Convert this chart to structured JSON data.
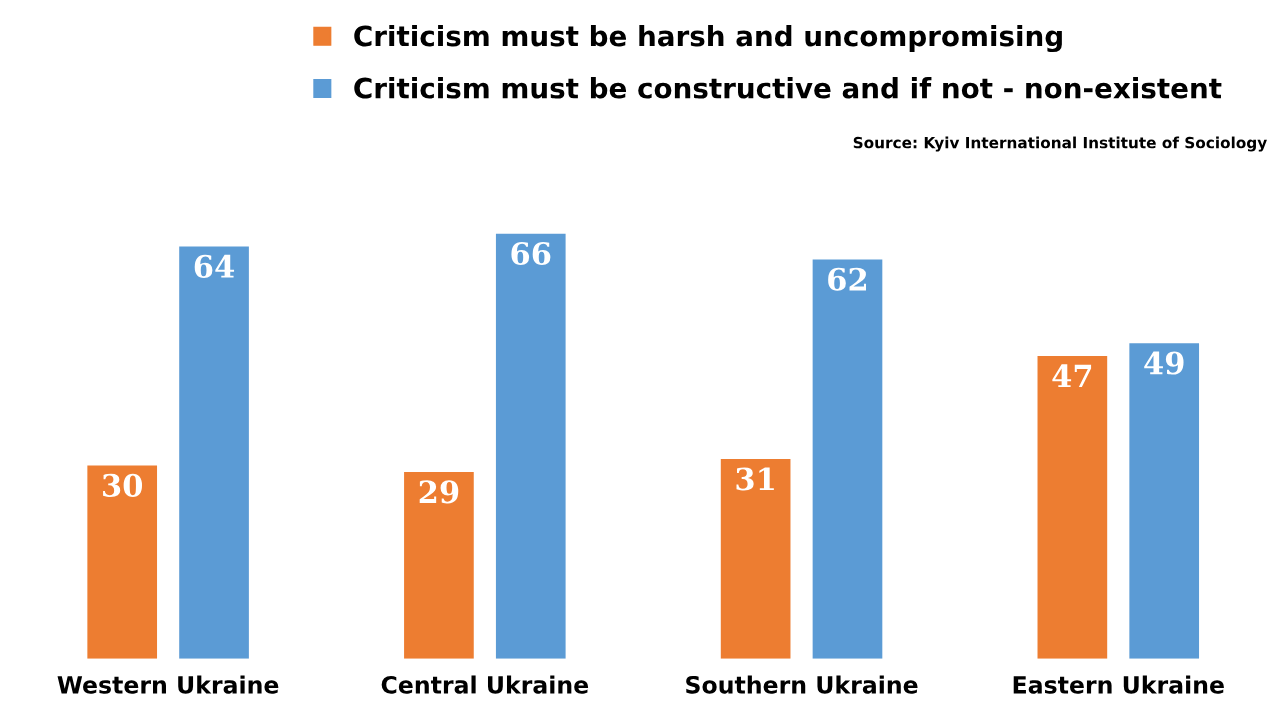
{
  "chart_data": {
    "type": "bar",
    "categories": [
      "Western Ukraine",
      "Central Ukraine",
      "Southern Ukraine",
      "Eastern Ukraine"
    ],
    "series": [
      {
        "name": "Criticism must be harsh and uncompromising",
        "color": "#ed7d31",
        "values": [
          30,
          29,
          31,
          47
        ]
      },
      {
        "name": "Criticism must be constructive and if not - non-existent",
        "color": "#5b9bd5",
        "values": [
          64,
          66,
          62,
          49
        ]
      }
    ],
    "data_labels": true,
    "legend": "top",
    "grid": false,
    "annotations": [
      "Source: Kyiv International Institute of Sociology"
    ]
  }
}
